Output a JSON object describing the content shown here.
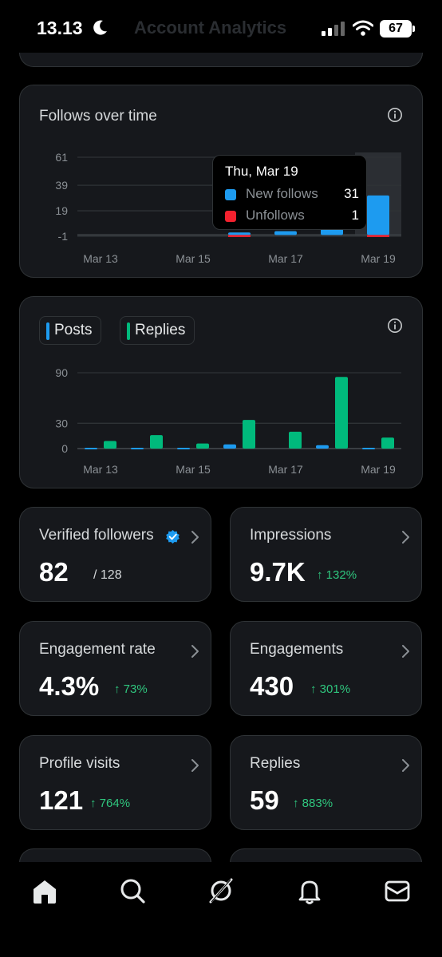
{
  "status_bar": {
    "time": "13.13",
    "faded_title": "Account Analytics",
    "battery": "67"
  },
  "follows_chart": {
    "title": "Follows over time",
    "tooltip": {
      "date": "Thu, Mar 19",
      "rows": [
        {
          "label": "New follows",
          "value": "31",
          "color": "#1d9bf0"
        },
        {
          "label": "Unfollows",
          "value": "1",
          "color": "#f4212e"
        }
      ]
    }
  },
  "posts_chart": {
    "legend": [
      {
        "label": "Posts",
        "color": "#1d9bf0"
      },
      {
        "label": "Replies",
        "color": "#00ba7c"
      }
    ]
  },
  "chart_data": [
    {
      "type": "bar",
      "title": "Follows over time",
      "x_tick_labels": [
        "Mar 13",
        "Mar 15",
        "Mar 17",
        "Mar 19"
      ],
      "y_tick_labels": [
        "61",
        "39",
        "19",
        "-1"
      ],
      "ylim": [
        -1,
        61
      ],
      "categories": [
        "Mar 13",
        "Mar 14",
        "Mar 15",
        "Mar 16",
        "Mar 17",
        "Mar 18",
        "Mar 19"
      ],
      "series": [
        {
          "name": "New follows",
          "color": "#1d9bf0",
          "values": [
            0,
            0,
            0,
            2,
            3,
            61,
            31
          ]
        },
        {
          "name": "Unfollows",
          "color": "#f4212e",
          "values": [
            0,
            0,
            0,
            1,
            0,
            0,
            1
          ]
        }
      ],
      "highlighted_category": "Mar 19",
      "grid": true
    },
    {
      "type": "bar",
      "x_tick_labels": [
        "Mar 13",
        "Mar 15",
        "Mar 17",
        "Mar 19"
      ],
      "y_tick_labels": [
        "90",
        "30",
        "0"
      ],
      "ylim": [
        0,
        90
      ],
      "categories": [
        "Mar 13",
        "Mar 14",
        "Mar 15",
        "Mar 16",
        "Mar 17",
        "Mar 18",
        "Mar 19"
      ],
      "series": [
        {
          "name": "Posts",
          "color": "#1d9bf0",
          "values": [
            1,
            1,
            1,
            5,
            0,
            4,
            1
          ]
        },
        {
          "name": "Replies",
          "color": "#00ba7c",
          "values": [
            9,
            16,
            6,
            34,
            20,
            85,
            13
          ]
        }
      ],
      "grid": true
    }
  ],
  "stats": [
    {
      "label": "Verified followers",
      "value": "82",
      "sub": "/ 128",
      "change": "",
      "verified": true
    },
    {
      "label": "Impressions",
      "value": "9.7K",
      "sub": "",
      "change": "↑ 132%"
    },
    {
      "label": "Engagement rate",
      "value": "4.3%",
      "sub": "",
      "change": "↑ 73%"
    },
    {
      "label": "Engagements",
      "value": "430",
      "sub": "",
      "change": "↑ 301%"
    },
    {
      "label": "Profile visits",
      "value": "121",
      "sub": "",
      "change": "↑ 764%"
    },
    {
      "label": "Replies",
      "value": "59",
      "sub": "",
      "change": "↑ 883%"
    }
  ],
  "nav": [
    {
      "icon": "home-icon"
    },
    {
      "icon": "search-icon"
    },
    {
      "icon": "grok-icon"
    },
    {
      "icon": "notifications-icon"
    },
    {
      "icon": "messages-icon"
    }
  ]
}
